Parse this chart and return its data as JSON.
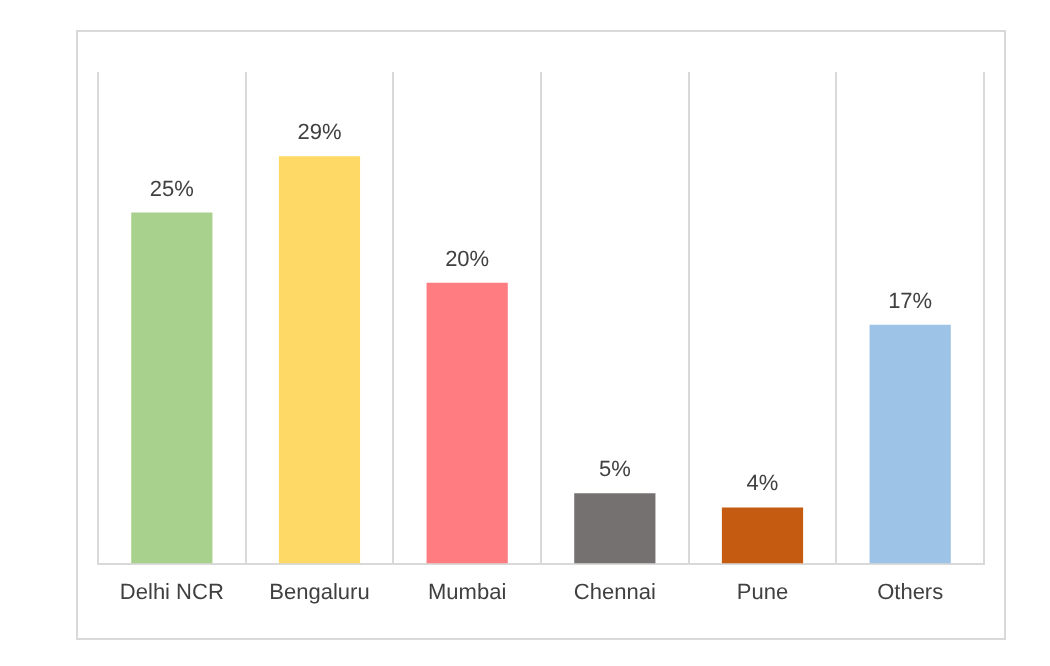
{
  "chart_data": {
    "type": "bar",
    "categories": [
      "Delhi NCR",
      "Bengaluru",
      "Mumbai",
      "Chennai",
      "Pune",
      "Others"
    ],
    "values": [
      25,
      29,
      20,
      5,
      4,
      17
    ],
    "colors": [
      "#a9d18e",
      "#ffd966",
      "#ff7c80",
      "#767171",
      "#c55a11",
      "#9dc3e6"
    ],
    "value_labels": [
      "25%",
      "29%",
      "20%",
      "5%",
      "4%",
      "17%"
    ],
    "grid": "x"
  }
}
